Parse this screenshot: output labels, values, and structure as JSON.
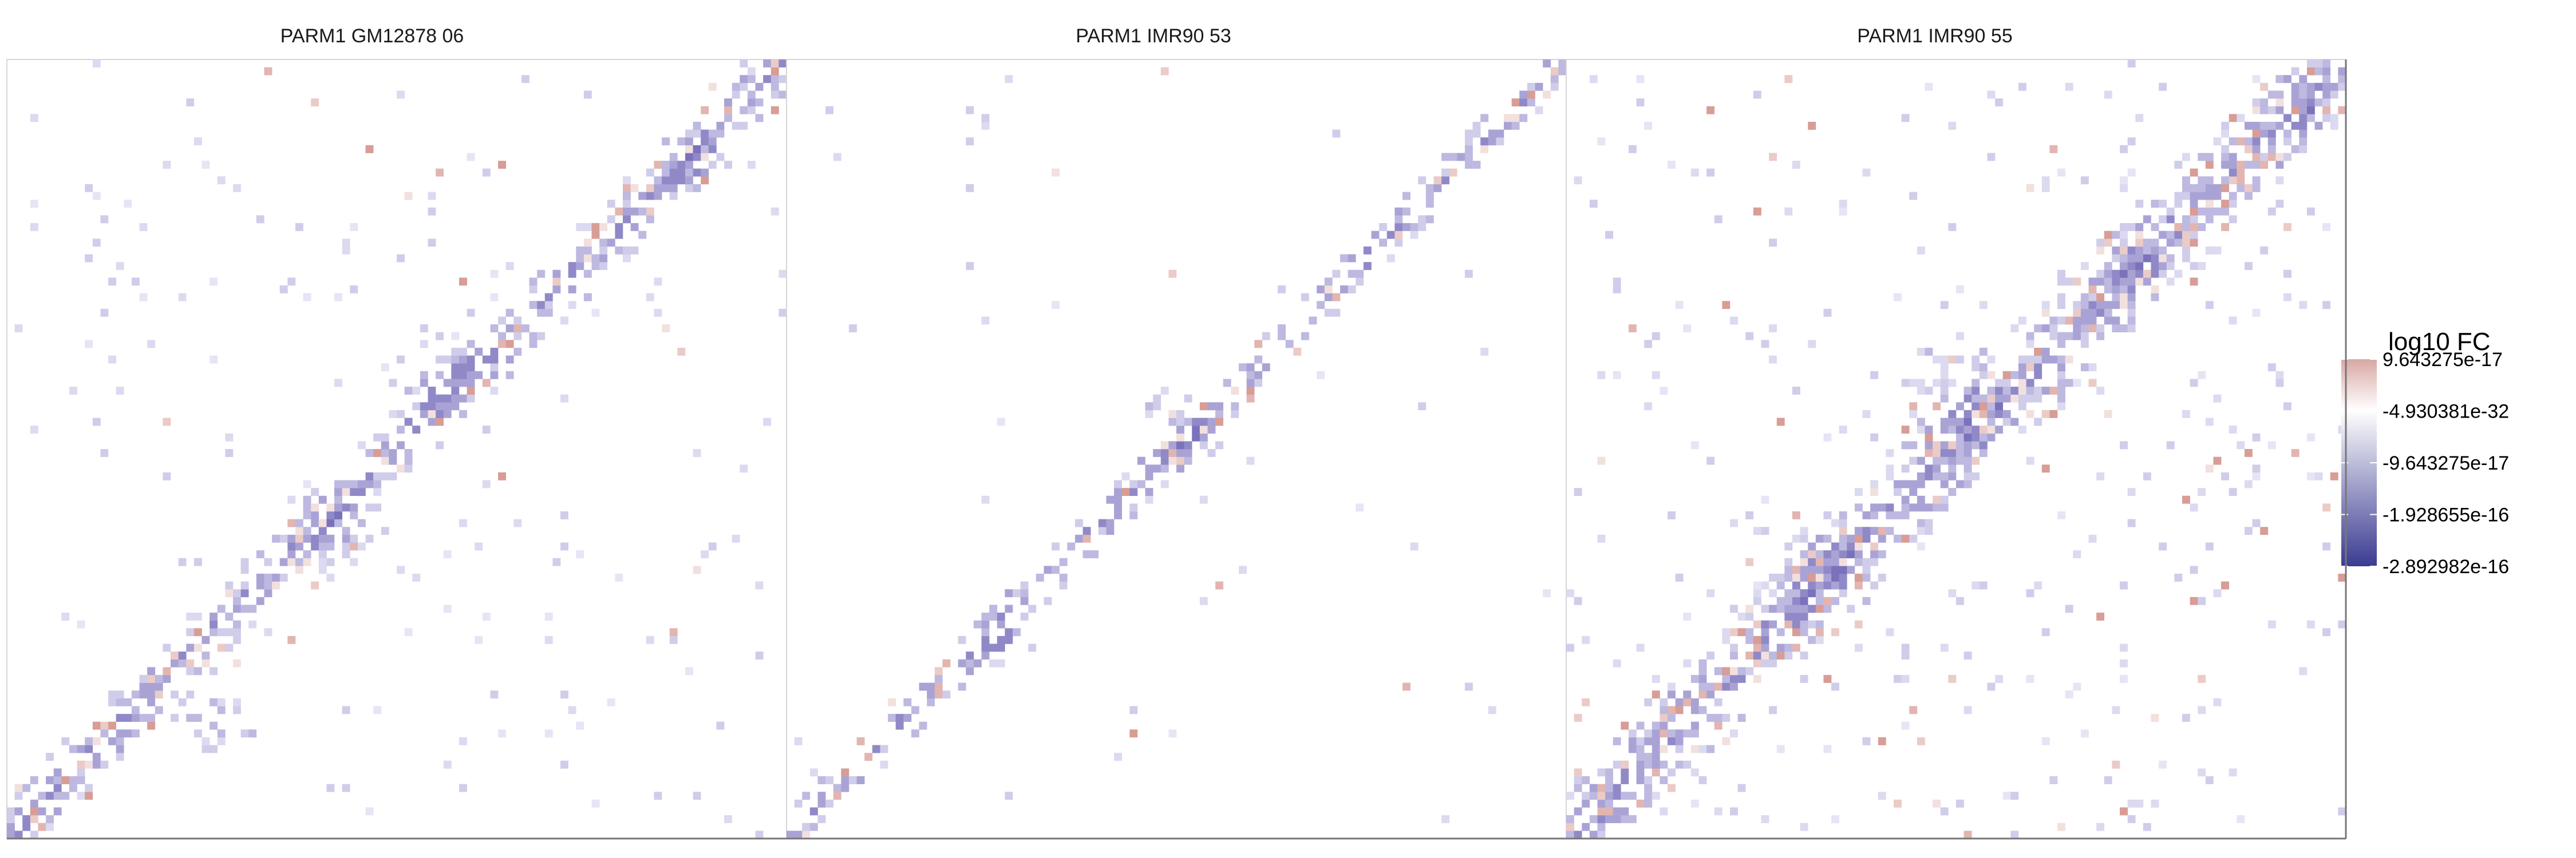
{
  "chart_data": {
    "type": "heatmap",
    "facets": [
      {
        "title": "PARM1 GM12878 06",
        "seed": 11,
        "diag_width": 5.0,
        "diag_density": 0.62,
        "offdiag_density": 0.018,
        "red_fraction": 0.12,
        "hot_spots": [
          [
            0.26,
            0.14,
            0.06
          ],
          [
            0.42,
            0.38,
            0.08
          ],
          [
            0.55,
            0.58,
            0.08
          ],
          [
            0.88,
            0.86,
            0.05
          ]
        ]
      },
      {
        "title": "PARM1 IMR90 53",
        "seed": 23,
        "diag_width": 3.6,
        "diag_density": 0.42,
        "offdiag_density": 0.004,
        "red_fraction": 0.14,
        "hot_spots": [
          [
            0.49,
            0.52,
            0.07
          ],
          [
            0.27,
            0.25,
            0.05
          ]
        ]
      },
      {
        "title": "PARM1 IMR90 55",
        "seed": 37,
        "diag_width": 8.0,
        "diag_density": 0.72,
        "offdiag_density": 0.03,
        "red_fraction": 0.16,
        "hot_spots": [
          [
            0.49,
            0.56,
            0.09
          ],
          [
            0.32,
            0.34,
            0.08
          ],
          [
            0.73,
            0.72,
            0.05
          ],
          [
            0.95,
            0.93,
            0.04
          ]
        ]
      }
    ],
    "grid_bins": 100,
    "legend": {
      "title": "log10 FC",
      "labels": [
        "9.643275e-17",
        "-4.930381e-32",
        "-9.643275e-17",
        "-1.928655e-16",
        "-2.892982e-16"
      ],
      "values": [
        9.643275e-17,
        -4.930381e-32,
        -9.643275e-17,
        -1.928655e-16,
        -2.892982e-16
      ],
      "range": [
        -2.892982e-16,
        9.643275e-17
      ],
      "colors": {
        "high": "#c96b5c",
        "mid": "#ffffff",
        "low": "#3b3b92"
      }
    },
    "xlabel": "",
    "ylabel": "",
    "grid": false,
    "legend_placement": "right"
  }
}
